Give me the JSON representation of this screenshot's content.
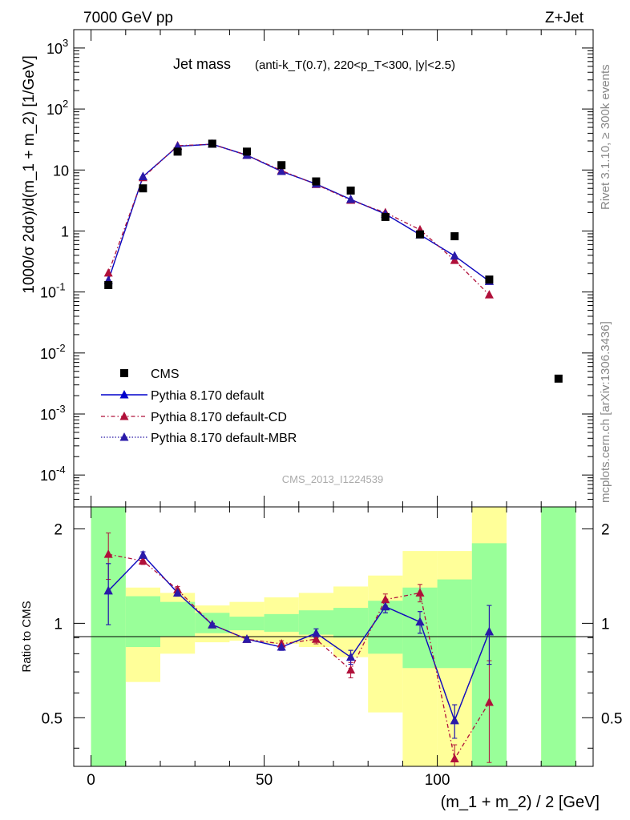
{
  "header": {
    "left": "7000 GeV pp",
    "right": "Z+Jet"
  },
  "side_text": {
    "rivet": "Rivet 3.1.10, ≥ 300k events",
    "site": "mcplots.cern.ch [arXiv:1306.3436]"
  },
  "colors": {
    "data": "#000000",
    "default": "#0000cc",
    "cd": "#b0103a",
    "mbr": "#2a1aa8",
    "band_green": "#99ff99",
    "band_yellow": "#ffff99"
  },
  "chart_data": [
    {
      "type": "line",
      "title": "Jet mass",
      "title_detail": "(anti-k_T(0.7), 220<p_T<300, |y|<2.5)",
      "watermark": "CMS_2013_I1224539",
      "ylabel": "1000/σ 2dσ)/d(m_1 + m_2) [1/GeV]",
      "yscale": "log",
      "ylim": [
        3e-05,
        2000
      ],
      "xlim": [
        -5,
        145
      ],
      "ytick_labels": [
        "10^3",
        "10^2",
        "10",
        "1",
        "10^-1",
        "10^-2",
        "10^-3",
        "10^-4"
      ],
      "legend_placement": "lower-left",
      "legend": [
        "CMS",
        "Pythia 8.170 default",
        "Pythia 8.170 default-CD",
        "Pythia 8.170 default-MBR"
      ],
      "data_points": {
        "name": "CMS",
        "x": [
          5,
          15,
          25,
          35,
          45,
          55,
          65,
          75,
          85,
          95,
          105,
          115,
          135
        ],
        "y": [
          0.13,
          5.0,
          20.0,
          27.0,
          20.0,
          12.0,
          6.5,
          4.6,
          1.7,
          0.88,
          0.82,
          0.16,
          0.0038
        ]
      },
      "series": [
        {
          "name": "Pythia 8.170 default",
          "x": [
            5,
            15,
            25,
            35,
            45,
            55,
            65,
            75,
            85,
            95,
            105,
            115
          ],
          "y": [
            0.155,
            7.8,
            24.5,
            26.5,
            17.5,
            9.5,
            5.9,
            3.3,
            1.9,
            0.87,
            0.39,
            0.15
          ]
        },
        {
          "name": "Pythia 8.170 default-CD",
          "x": [
            5,
            15,
            25,
            35,
            45,
            55,
            65,
            75,
            85,
            95,
            105,
            115
          ],
          "y": [
            0.205,
            7.5,
            25.0,
            26.5,
            17.5,
            9.8,
            5.8,
            3.2,
            2.0,
            1.05,
            0.33,
            0.09
          ]
        },
        {
          "name": "Pythia 8.170 default-MBR",
          "x": [
            5,
            15,
            25,
            35,
            45,
            55,
            65,
            75,
            85,
            95,
            105,
            115
          ],
          "y": [
            0.155,
            7.8,
            24.5,
            26.5,
            17.5,
            9.5,
            5.9,
            3.3,
            1.9,
            0.87,
            0.39,
            0.15
          ]
        }
      ]
    },
    {
      "type": "line",
      "ylabel": "Ratio to CMS",
      "xlabel": "(m_1 + m_2) / 2 [GeV]",
      "yscale": "log",
      "ylim": [
        0.35,
        2.35
      ],
      "xlim": [
        -5,
        145
      ],
      "xtick_labels": [
        "0",
        "50",
        "100"
      ],
      "ytick_labels": [
        "2",
        "1",
        "0.5"
      ],
      "bands": {
        "edges": [
          0,
          10,
          20,
          30,
          40,
          50,
          60,
          70,
          80,
          90,
          100,
          110,
          120,
          130,
          140
        ],
        "green": [
          [
            0.35,
            2.35
          ],
          [
            0.84,
            1.22
          ],
          [
            0.91,
            1.17
          ],
          [
            0.93,
            1.08
          ],
          [
            0.95,
            1.05
          ],
          [
            0.94,
            1.07
          ],
          [
            0.92,
            1.1
          ],
          [
            0.9,
            1.12
          ],
          [
            0.8,
            1.18
          ],
          [
            0.72,
            1.3
          ],
          [
            0.72,
            1.38
          ],
          [
            0.35,
            1.8
          ],
          null,
          [
            0.35,
            2.35
          ]
        ],
        "yellow": [
          [
            0.35,
            2.35
          ],
          [
            0.65,
            1.3
          ],
          [
            0.8,
            1.25
          ],
          [
            0.87,
            1.14
          ],
          [
            0.88,
            1.17
          ],
          [
            0.86,
            1.21
          ],
          [
            0.84,
            1.25
          ],
          [
            0.78,
            1.31
          ],
          [
            0.52,
            1.42
          ],
          [
            0.35,
            1.7
          ],
          [
            0.35,
            1.7
          ],
          [
            0.35,
            2.35
          ],
          null,
          [
            0.35,
            2.35
          ]
        ]
      },
      "series": [
        {
          "name": "Pythia 8.170 default",
          "x": [
            5,
            15,
            25,
            35,
            45,
            55,
            65,
            75,
            85,
            95,
            105,
            115
          ],
          "y": [
            1.27,
            1.65,
            1.25,
            0.99,
            0.89,
            0.84,
            0.93,
            0.78,
            1.13,
            1.01,
            0.49,
            0.94
          ],
          "err": [
            0.28,
            0.04,
            0.03,
            0.01,
            0.01,
            0.02,
            0.03,
            0.04,
            0.05,
            0.08,
            0.06,
            0.2
          ]
        },
        {
          "name": "Pythia 8.170 default-CD",
          "x": [
            5,
            15,
            25,
            35,
            45,
            55,
            65,
            75,
            85,
            95,
            105,
            115
          ],
          "y": [
            1.66,
            1.58,
            1.28,
            0.99,
            0.89,
            0.86,
            0.89,
            0.71,
            1.19,
            1.25,
            0.37,
            0.56
          ],
          "err": [
            0.28,
            0.04,
            0.03,
            0.01,
            0.01,
            0.02,
            0.03,
            0.04,
            0.05,
            0.08,
            0.04,
            0.2
          ]
        },
        {
          "name": "Pythia 8.170 default-MBR",
          "x": [
            5,
            15,
            25,
            35,
            45,
            55,
            65,
            75,
            85,
            95,
            105,
            115
          ],
          "y": [
            1.27,
            1.65,
            1.25,
            0.99,
            0.89,
            0.84,
            0.93,
            0.78,
            1.13,
            1.01,
            0.49,
            0.94
          ],
          "err": [
            0.28,
            0.04,
            0.03,
            0.01,
            0.01,
            0.02,
            0.03,
            0.04,
            0.05,
            0.08,
            0.06,
            0.2
          ]
        }
      ]
    }
  ]
}
